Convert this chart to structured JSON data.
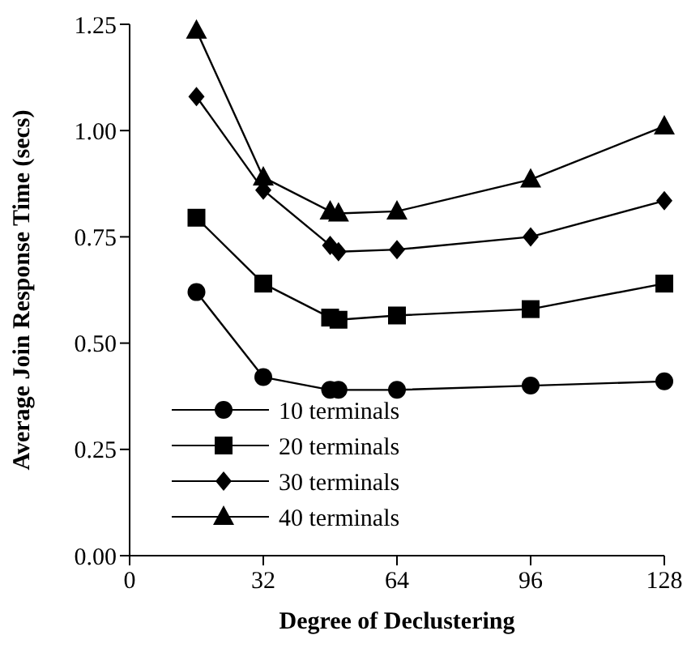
{
  "chart_data": {
    "type": "line",
    "xlabel": "Degree of Declustering",
    "ylabel": "Average Join Response Time (secs)",
    "x": [
      16,
      32,
      48,
      50,
      64,
      96,
      128
    ],
    "xlim": [
      0,
      128
    ],
    "xticks": [
      0,
      32,
      64,
      96,
      128
    ],
    "ylim": [
      0,
      1.25
    ],
    "yticks": [
      {
        "value": 0,
        "label": "0.00"
      },
      {
        "value": 0.25,
        "label": "0.25"
      },
      {
        "value": 0.5,
        "label": "0.50"
      },
      {
        "value": 0.75,
        "label": "0.75"
      },
      {
        "value": 1,
        "label": "1.00"
      },
      {
        "value": 1.25,
        "label": "1.25"
      }
    ],
    "legend": "bottom left",
    "grid": false,
    "line_style": "solid",
    "series": [
      {
        "name": "10 terminals",
        "color": "#000000",
        "marker": "circle",
        "values": [
          0.62,
          0.42,
          0.39,
          0.39,
          0.39,
          0.4,
          0.41
        ]
      },
      {
        "name": "20 terminals",
        "color": "#000000",
        "marker": "square",
        "values": [
          0.795,
          0.64,
          0.56,
          0.555,
          0.565,
          0.58,
          0.64
        ]
      },
      {
        "name": "30 terminals",
        "color": "#000000",
        "marker": "diamond",
        "values": [
          1.08,
          0.86,
          0.73,
          0.715,
          0.72,
          0.75,
          0.835
        ]
      },
      {
        "name": "40 terminals",
        "color": "#000000",
        "marker": "triangle",
        "values": [
          1.235,
          0.89,
          0.81,
          0.805,
          0.81,
          0.885,
          1.01
        ]
      }
    ]
  }
}
